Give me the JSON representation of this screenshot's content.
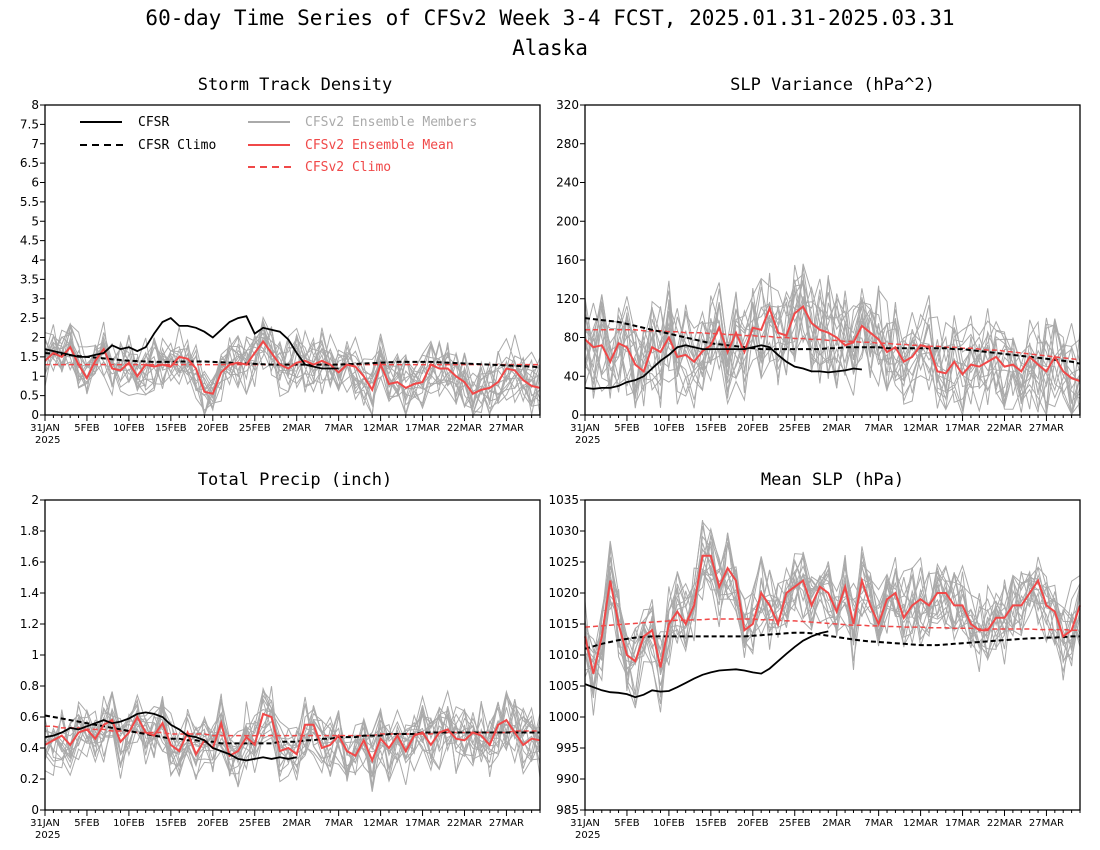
{
  "figure": {
    "title": "60-day Time Series of CFSv2 Week 3-4 FCST, 2025.01.31-2025.03.31",
    "subtitle": "Alaska"
  },
  "legend": {
    "cfsr": "CFSR",
    "cfsr_climo": "CFSR Climo",
    "members": "CFSv2 Ensemble Members",
    "mean": "CFSv2 Ensemble Mean",
    "cfsv2_climo": "CFSv2 Climo"
  },
  "colors": {
    "cfsr": "#000000",
    "members": "#aaaaaa",
    "mean": "#f04848",
    "cfsv2_climo": "#f04848"
  },
  "x_ticks": [
    "31JAN",
    "5FEB",
    "10FEB",
    "15FEB",
    "20FEB",
    "25FEB",
    "2MAR",
    "7MAR",
    "12MAR",
    "17MAR",
    "22MAR",
    "27MAR"
  ],
  "x_year": "2025",
  "chart_data": [
    {
      "type": "line",
      "title": "Storm Track Density",
      "ylim": [
        0,
        8
      ],
      "yticks": [
        "0",
        "0.5",
        "1",
        "1.5",
        "2",
        "2.5",
        "3",
        "3.5",
        "4",
        "4.5",
        "5",
        "5.5",
        "6",
        "6.5",
        "7",
        "7.5",
        "8"
      ],
      "x_days": 60,
      "cfsr": [
        1.7,
        1.65,
        1.6,
        1.55,
        1.5,
        1.5,
        1.55,
        1.6,
        1.8,
        1.7,
        1.75,
        1.65,
        1.75,
        2.1,
        2.4,
        2.5,
        2.3,
        2.3,
        2.25,
        2.15,
        2.0,
        2.2,
        2.4,
        2.5,
        2.55,
        2.1,
        2.25,
        2.2,
        2.15,
        1.95,
        1.6,
        1.3,
        1.25,
        1.2,
        1.2,
        1.2
      ],
      "cfsr_climo": [
        1.6,
        1.58,
        1.56,
        1.54,
        1.52,
        1.5,
        1.48,
        1.46,
        1.44,
        1.42,
        1.4,
        1.39,
        1.38,
        1.37,
        1.37,
        1.37,
        1.38,
        1.38,
        1.38,
        1.38,
        1.37,
        1.36,
        1.35,
        1.34,
        1.33,
        1.32,
        1.31,
        1.3,
        1.3,
        1.3,
        1.3,
        1.3,
        1.3,
        1.3,
        1.3,
        1.3,
        1.31,
        1.32,
        1.33,
        1.34,
        1.35,
        1.36,
        1.37,
        1.37,
        1.37,
        1.37,
        1.37,
        1.36,
        1.35,
        1.34,
        1.33,
        1.32,
        1.31,
        1.3,
        1.29,
        1.28,
        1.27,
        1.26,
        1.25,
        1.23
      ],
      "ens_mean": [
        1.4,
        1.6,
        1.5,
        1.75,
        1.3,
        0.95,
        1.4,
        1.7,
        1.2,
        1.15,
        1.35,
        1.0,
        1.3,
        1.25,
        1.3,
        1.25,
        1.5,
        1.45,
        1.2,
        0.6,
        0.55,
        1.1,
        1.3,
        1.35,
        1.3,
        1.6,
        1.9,
        1.6,
        1.3,
        1.2,
        1.35,
        1.4,
        1.3,
        1.4,
        1.3,
        1.1,
        1.3,
        1.25,
        1.0,
        0.65,
        1.3,
        0.8,
        0.85,
        0.7,
        0.8,
        0.85,
        1.3,
        1.2,
        1.2,
        1.0,
        0.85,
        0.55,
        0.65,
        0.7,
        0.85,
        1.2,
        1.15,
        0.9,
        0.75,
        0.7
      ],
      "cfsv2_climo": [
        1.3,
        1.3,
        1.3,
        1.3,
        1.3,
        1.3,
        1.3,
        1.3,
        1.3,
        1.3,
        1.3,
        1.3,
        1.3,
        1.3,
        1.3,
        1.3,
        1.3,
        1.3,
        1.3,
        1.3,
        1.3,
        1.3,
        1.3,
        1.3,
        1.3,
        1.3,
        1.3,
        1.3,
        1.3,
        1.3,
        1.3,
        1.3,
        1.3,
        1.3,
        1.3,
        1.3,
        1.3,
        1.3,
        1.3,
        1.3,
        1.3,
        1.3,
        1.3,
        1.3,
        1.3,
        1.3,
        1.3,
        1.3,
        1.3,
        1.3,
        1.3,
        1.3,
        1.3,
        1.3,
        1.3,
        1.3,
        1.3,
        1.3,
        1.3,
        1.3
      ],
      "member_spread": 0.6
    },
    {
      "type": "line",
      "title": "SLP Variance (hPa^2)",
      "ylim": [
        0,
        320
      ],
      "yticks": [
        "0",
        "40",
        "80",
        "120",
        "160",
        "200",
        "240",
        "280",
        "320"
      ],
      "x_days": 60,
      "cfsr": [
        28,
        27,
        28,
        28,
        30,
        34,
        36,
        40,
        48,
        56,
        62,
        70,
        72,
        70,
        68,
        68,
        68,
        68,
        68,
        68,
        70,
        72,
        70,
        62,
        55,
        50,
        48,
        45,
        45,
        44,
        45,
        46,
        48,
        47
      ],
      "cfsr_climo": [
        100,
        99,
        98,
        97,
        96,
        94,
        92,
        90,
        88,
        86,
        84,
        82,
        80,
        78,
        76,
        74,
        73,
        72,
        71,
        70,
        69,
        68,
        68,
        68,
        68,
        68,
        68,
        68,
        68,
        69,
        69,
        70,
        70,
        70,
        70,
        70,
        69,
        69,
        69,
        69,
        69,
        69,
        69,
        69,
        68,
        68,
        67,
        66,
        65,
        64,
        63,
        62,
        61,
        60,
        59,
        58,
        57,
        56,
        55,
        53
      ],
      "ens_mean": [
        78,
        70,
        72,
        55,
        74,
        70,
        52,
        45,
        70,
        65,
        80,
        60,
        62,
        55,
        66,
        72,
        90,
        65,
        85,
        65,
        90,
        88,
        110,
        85,
        82,
        105,
        112,
        95,
        88,
        85,
        80,
        72,
        75,
        92,
        85,
        78,
        65,
        70,
        55,
        60,
        72,
        70,
        45,
        43,
        55,
        42,
        52,
        50,
        55,
        60,
        50,
        52,
        45,
        60,
        52,
        45,
        60,
        45,
        38,
        35
      ],
      "cfsv2_climo": [
        88,
        88,
        88,
        88,
        88,
        88,
        88,
        87,
        87,
        87,
        86,
        86,
        85,
        85,
        85,
        84,
        84,
        83,
        83,
        82,
        82,
        81,
        81,
        80,
        80,
        79,
        79,
        78,
        78,
        77,
        77,
        76,
        76,
        75,
        75,
        74,
        74,
        73,
        73,
        72,
        72,
        71,
        71,
        70,
        70,
        69,
        69,
        68,
        67,
        67,
        66,
        65,
        64,
        63,
        62,
        61,
        60,
        59,
        58,
        57
      ],
      "member_spread": 40
    },
    {
      "type": "line",
      "title": "Total Precip (inch)",
      "ylim": [
        0,
        2
      ],
      "yticks": [
        "0",
        "0.2",
        "0.4",
        "0.6",
        "0.8",
        "1",
        "1.2",
        "1.4",
        "1.6",
        "1.8",
        "2"
      ],
      "x_days": 60,
      "cfsr": [
        0.47,
        0.48,
        0.5,
        0.53,
        0.52,
        0.54,
        0.56,
        0.58,
        0.56,
        0.57,
        0.59,
        0.62,
        0.63,
        0.62,
        0.6,
        0.55,
        0.52,
        0.48,
        0.47,
        0.45,
        0.4,
        0.38,
        0.36,
        0.33,
        0.32,
        0.33,
        0.34,
        0.33,
        0.34,
        0.33,
        0.34
      ],
      "cfsr_climo": [
        0.61,
        0.6,
        0.59,
        0.58,
        0.57,
        0.56,
        0.55,
        0.54,
        0.53,
        0.52,
        0.51,
        0.5,
        0.49,
        0.48,
        0.47,
        0.46,
        0.46,
        0.45,
        0.45,
        0.44,
        0.44,
        0.43,
        0.43,
        0.43,
        0.43,
        0.43,
        0.43,
        0.43,
        0.44,
        0.44,
        0.44,
        0.45,
        0.45,
        0.46,
        0.46,
        0.47,
        0.47,
        0.47,
        0.48,
        0.48,
        0.48,
        0.49,
        0.49,
        0.49,
        0.49,
        0.5,
        0.5,
        0.5,
        0.5,
        0.5,
        0.5,
        0.5,
        0.5,
        0.5,
        0.5,
        0.5,
        0.5,
        0.5,
        0.5,
        0.5
      ],
      "ens_mean": [
        0.42,
        0.45,
        0.48,
        0.42,
        0.5,
        0.52,
        0.46,
        0.55,
        0.58,
        0.44,
        0.5,
        0.6,
        0.5,
        0.48,
        0.56,
        0.42,
        0.38,
        0.5,
        0.36,
        0.45,
        0.4,
        0.56,
        0.35,
        0.38,
        0.47,
        0.42,
        0.62,
        0.6,
        0.38,
        0.4,
        0.36,
        0.55,
        0.55,
        0.4,
        0.42,
        0.48,
        0.38,
        0.35,
        0.45,
        0.32,
        0.46,
        0.4,
        0.48,
        0.38,
        0.48,
        0.5,
        0.42,
        0.5,
        0.52,
        0.46,
        0.45,
        0.5,
        0.48,
        0.42,
        0.55,
        0.58,
        0.5,
        0.42,
        0.46,
        0.45
      ],
      "cfsv2_climo": [
        0.54,
        0.54,
        0.53,
        0.53,
        0.53,
        0.52,
        0.52,
        0.52,
        0.51,
        0.51,
        0.51,
        0.5,
        0.5,
        0.5,
        0.5,
        0.49,
        0.49,
        0.49,
        0.49,
        0.49,
        0.48,
        0.48,
        0.48,
        0.48,
        0.48,
        0.48,
        0.48,
        0.48,
        0.48,
        0.48,
        0.48,
        0.48,
        0.48,
        0.48,
        0.48,
        0.48,
        0.48,
        0.48,
        0.48,
        0.48,
        0.49,
        0.49,
        0.49,
        0.49,
        0.49,
        0.49,
        0.49,
        0.5,
        0.5,
        0.5,
        0.5,
        0.5,
        0.5,
        0.5,
        0.5,
        0.5,
        0.51,
        0.51,
        0.51,
        0.51
      ],
      "member_spread": 0.16
    },
    {
      "type": "line",
      "title": "Mean SLP (hPa)",
      "ylim": [
        985,
        1035
      ],
      "yticks": [
        "985",
        "990",
        "995",
        "1000",
        "1005",
        "1010",
        "1015",
        "1020",
        "1025",
        "1030",
        "1035"
      ],
      "x_days": 60,
      "cfsr": [
        1005.3,
        1004.8,
        1004.3,
        1004.0,
        1003.9,
        1003.7,
        1003.2,
        1003.6,
        1004.3,
        1004.1,
        1004.2,
        1004.8,
        1005.5,
        1006.2,
        1006.8,
        1007.2,
        1007.5,
        1007.6,
        1007.7,
        1007.5,
        1007.2,
        1007.0,
        1007.8,
        1009.0,
        1010.2,
        1011.3,
        1012.3,
        1013.0,
        1013.5,
        1013.8
      ],
      "cfsr_climo": [
        1011.0,
        1011.4,
        1011.8,
        1012.1,
        1012.4,
        1012.6,
        1012.8,
        1012.9,
        1013.0,
        1013.0,
        1013.0,
        1013.0,
        1013.0,
        1013.0,
        1013.0,
        1013.0,
        1013.0,
        1013.0,
        1013.0,
        1013.0,
        1013.1,
        1013.2,
        1013.3,
        1013.4,
        1013.5,
        1013.6,
        1013.6,
        1013.5,
        1013.3,
        1013.1,
        1012.9,
        1012.7,
        1012.5,
        1012.3,
        1012.2,
        1012.1,
        1012.0,
        1011.9,
        1011.8,
        1011.7,
        1011.6,
        1011.6,
        1011.6,
        1011.7,
        1011.8,
        1011.9,
        1012.0,
        1012.1,
        1012.2,
        1012.3,
        1012.4,
        1012.5,
        1012.6,
        1012.7,
        1012.7,
        1012.8,
        1012.8,
        1012.9,
        1013.0,
        1013.0
      ],
      "ens_mean": [
        1013,
        1007,
        1013,
        1022,
        1015,
        1010,
        1009,
        1013,
        1014,
        1008,
        1015,
        1017,
        1015,
        1018,
        1026,
        1026,
        1021,
        1024,
        1022,
        1014,
        1015,
        1020,
        1018,
        1015,
        1020,
        1021,
        1022,
        1018,
        1021,
        1020,
        1017,
        1021,
        1015,
        1022,
        1018,
        1015,
        1019,
        1020,
        1016,
        1018,
        1019,
        1018,
        1020,
        1020,
        1018,
        1018,
        1015,
        1014,
        1014,
        1016,
        1016,
        1018,
        1018,
        1020,
        1022,
        1018,
        1017,
        1013,
        1014,
        1018
      ],
      "cfsv2_climo": [
        1014.5,
        1014.6,
        1014.7,
        1014.8,
        1014.9,
        1015.0,
        1015.1,
        1015.2,
        1015.3,
        1015.4,
        1015.5,
        1015.6,
        1015.6,
        1015.7,
        1015.7,
        1015.8,
        1015.8,
        1015.8,
        1015.8,
        1015.8,
        1015.8,
        1015.7,
        1015.7,
        1015.6,
        1015.5,
        1015.5,
        1015.4,
        1015.3,
        1015.2,
        1015.1,
        1015.0,
        1014.9,
        1014.8,
        1014.8,
        1014.7,
        1014.7,
        1014.6,
        1014.6,
        1014.5,
        1014.5,
        1014.5,
        1014.4,
        1014.4,
        1014.4,
        1014.3,
        1014.3,
        1014.3,
        1014.2,
        1014.2,
        1014.2,
        1014.2,
        1014.2,
        1014.2,
        1014.2,
        1014.1,
        1014.1,
        1014.1,
        1014.1,
        1014.0,
        1014.0
      ],
      "member_spread": 5
    }
  ]
}
